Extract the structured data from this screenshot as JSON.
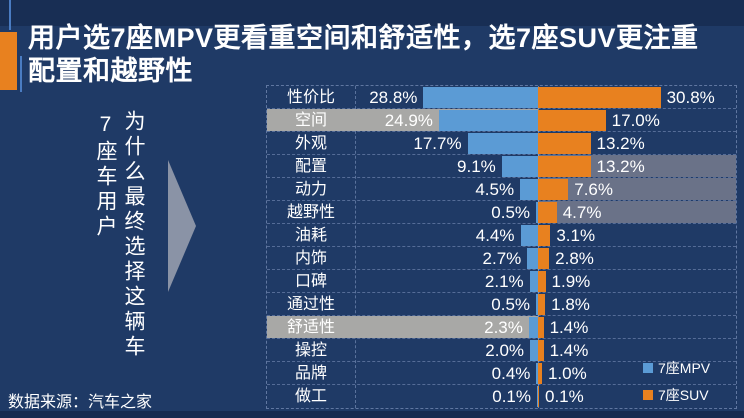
{
  "title": {
    "line1": "用户选7座MPV更看重空间和舒适性，选7座SUV更注重",
    "line2": "配置和越野性"
  },
  "left_panel": {
    "vertical_label_1": "7座车用户",
    "vertical_label_2": "为什么最终选择这辆车"
  },
  "source": "数据来源：汽车之家",
  "legend": [
    {
      "label": "7座MPV",
      "color": "#5B9BD5"
    },
    {
      "label": "7座SUV",
      "color": "#E8811F"
    }
  ],
  "colors": {
    "background": "#1F3A66",
    "mpv_bar": "#5B9BD5",
    "suv_bar": "#E8811F",
    "left_highlight": "#A8A8A6",
    "right_highlight": "#6A7288",
    "title_accent": "#E8811F"
  },
  "chart_data": {
    "type": "bar",
    "orientation": "diverging-horizontal",
    "unit": "%",
    "categories": [
      "性价比",
      "空间",
      "外观",
      "配置",
      "动力",
      "越野性",
      "油耗",
      "内饰",
      "口碑",
      "通过性",
      "舒适性",
      "操控",
      "品牌",
      "做工"
    ],
    "series": [
      {
        "name": "7座MPV",
        "side": "left",
        "values": [
          28.8,
          24.9,
          17.7,
          9.1,
          4.5,
          0.5,
          4.4,
          2.7,
          2.1,
          0.5,
          2.3,
          2.0,
          0.4,
          0.1
        ]
      },
      {
        "name": "7座SUV",
        "side": "right",
        "values": [
          30.8,
          17.0,
          13.2,
          13.2,
          7.6,
          4.7,
          3.1,
          2.8,
          1.9,
          1.8,
          1.4,
          1.4,
          1.0,
          0.1
        ]
      }
    ],
    "value_labels": {
      "mpv": [
        "28.8%",
        "24.9%",
        "17.7%",
        "9.1%",
        "4.5%",
        "0.5%",
        "4.4%",
        "2.7%",
        "2.1%",
        "0.5%",
        "2.3%",
        "2.0%",
        "0.4%",
        "0.1%"
      ],
      "suv": [
        "30.8%",
        "17.0%",
        "13.2%",
        "13.2%",
        "7.6%",
        "4.7%",
        "3.1%",
        "2.8%",
        "1.9%",
        "1.8%",
        "1.4%",
        "1.4%",
        "1.0%",
        "0.1%"
      ]
    },
    "row_highlights": [
      "none",
      "left",
      "none",
      "right",
      "right",
      "right",
      "none",
      "none",
      "none",
      "none",
      "left",
      "none",
      "none",
      "none"
    ],
    "legend_position": "bottom-right",
    "grid": "dashed",
    "axis_max_percent": 45
  }
}
